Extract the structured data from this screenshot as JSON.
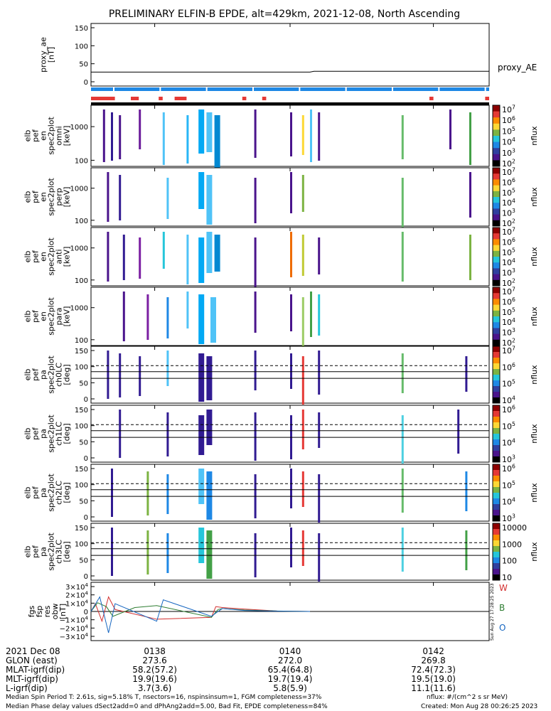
{
  "title": "PRELIMINARY ELFIN-B EPDE, alt=429km, 2021-12-08, North Ascending",
  "colors": {
    "mlt_bar": "#1e88e5",
    "flag_bar": "#e53935",
    "panel_frame": "#000000",
    "bx": "#d32f2f",
    "by": "#2e7d32",
    "bz": "#1565c0"
  },
  "chart_data": [
    {
      "type": "line",
      "panel": "proxy_ae",
      "ylabel_lines": [
        "proxy_ae",
        "[nT]"
      ],
      "yticks": [
        "150",
        "100",
        "50",
        "0"
      ],
      "ylim": [
        -10,
        160
      ],
      "legend": "proxy_AE",
      "series": [
        {
          "name": "proxy_AE",
          "x": [
            0,
            0.55,
            0.56,
            1.0
          ],
          "y": [
            28,
            28,
            30,
            30
          ]
        }
      ]
    },
    {
      "type": "heatmap",
      "panel": "omni",
      "ylabel_lines": [
        "elb",
        "pef",
        "en",
        "spec2plot",
        "omni",
        "[keV]"
      ],
      "yticks": [
        "1000",
        "100"
      ],
      "colorbar_ticks": [
        "10^7",
        "10^6",
        "10^5",
        "10^4",
        "10^3",
        "10^2"
      ],
      "colorbar_label": "nflux",
      "streaks": [
        {
          "t": 0.03,
          "c": "#4a148c"
        },
        {
          "t": 0.05,
          "c": "#311b92"
        },
        {
          "t": 0.07,
          "c": "#4a148c"
        },
        {
          "t": 0.12,
          "c": "#6a1b9a"
        },
        {
          "t": 0.18,
          "c": "#4fc3f7"
        },
        {
          "t": 0.24,
          "c": "#29b6f6"
        },
        {
          "t": 0.27,
          "c": "#03a9f4"
        },
        {
          "t": 0.29,
          "c": "#4fc3f7"
        },
        {
          "t": 0.31,
          "c": "#0288d1"
        },
        {
          "t": 0.41,
          "c": "#4a148c"
        },
        {
          "t": 0.5,
          "c": "#4a148c"
        },
        {
          "t": 0.53,
          "c": "#fdd835"
        },
        {
          "t": 0.55,
          "c": "#4fc3f7"
        },
        {
          "t": 0.57,
          "c": "#4a148c"
        },
        {
          "t": 0.78,
          "c": "#66bb6a"
        },
        {
          "t": 0.9,
          "c": "#4a148c"
        },
        {
          "t": 0.95,
          "c": "#43a047"
        }
      ]
    },
    {
      "type": "heatmap",
      "panel": "perp",
      "ylabel_lines": [
        "elb",
        "pef",
        "en",
        "spec2plot",
        "perp",
        "[keV]"
      ],
      "yticks": [
        "1000",
        "100"
      ],
      "colorbar_ticks": [
        "10^7",
        "10^6",
        "10^5",
        "10^4",
        "10^3",
        "10^2"
      ],
      "colorbar_label": "nflux",
      "streaks": [
        {
          "t": 0.04,
          "c": "#4a148c"
        },
        {
          "t": 0.07,
          "c": "#311b92"
        },
        {
          "t": 0.19,
          "c": "#4fc3f7"
        },
        {
          "t": 0.27,
          "c": "#03a9f4"
        },
        {
          "t": 0.29,
          "c": "#4fc3f7"
        },
        {
          "t": 0.41,
          "c": "#4a148c"
        },
        {
          "t": 0.5,
          "c": "#4a148c"
        },
        {
          "t": 0.53,
          "c": "#7cb342"
        },
        {
          "t": 0.78,
          "c": "#66bb6a"
        },
        {
          "t": 0.95,
          "c": "#4a148c"
        }
      ]
    },
    {
      "type": "heatmap",
      "panel": "anti",
      "ylabel_lines": [
        "elb",
        "pef",
        "en",
        "spec2plot",
        "anti",
        "[keV]"
      ],
      "yticks": [
        "1000",
        "100"
      ],
      "colorbar_ticks": [
        "10^7",
        "10^6",
        "10^5",
        "10^4",
        "10^3",
        "10^2"
      ],
      "colorbar_label": "nflux",
      "streaks": [
        {
          "t": 0.04,
          "c": "#4a148c"
        },
        {
          "t": 0.08,
          "c": "#311b92"
        },
        {
          "t": 0.12,
          "c": "#7b1fa2"
        },
        {
          "t": 0.18,
          "c": "#26c6da"
        },
        {
          "t": 0.24,
          "c": "#4fc3f7"
        },
        {
          "t": 0.27,
          "c": "#03a9f4"
        },
        {
          "t": 0.29,
          "c": "#4fc3f7"
        },
        {
          "t": 0.31,
          "c": "#0288d1"
        },
        {
          "t": 0.41,
          "c": "#4a148c"
        },
        {
          "t": 0.5,
          "c": "#ef6c00"
        },
        {
          "t": 0.53,
          "c": "#c0ca33"
        },
        {
          "t": 0.57,
          "c": "#4a148c"
        },
        {
          "t": 0.78,
          "c": "#66bb6a"
        },
        {
          "t": 0.95,
          "c": "#7cb342"
        }
      ]
    },
    {
      "type": "heatmap",
      "panel": "para",
      "ylabel_lines": [
        "elb",
        "pef",
        "en",
        "spec2plot",
        "para",
        "[keV]"
      ],
      "yticks": [
        "1000",
        "100"
      ],
      "colorbar_ticks": [
        "10^7",
        "10^6",
        "10^5",
        "10^4",
        "10^3",
        "10^2"
      ],
      "colorbar_label": "nflux",
      "streaks": [
        {
          "t": 0.08,
          "c": "#4a148c"
        },
        {
          "t": 0.14,
          "c": "#7b1fa2"
        },
        {
          "t": 0.19,
          "c": "#1e88e5"
        },
        {
          "t": 0.24,
          "c": "#4fc3f7"
        },
        {
          "t": 0.27,
          "c": "#03a9f4"
        },
        {
          "t": 0.3,
          "c": "#4fc3f7"
        },
        {
          "t": 0.41,
          "c": "#4a148c"
        },
        {
          "t": 0.5,
          "c": "#4a148c"
        },
        {
          "t": 0.53,
          "c": "#9ccc65"
        },
        {
          "t": 0.55,
          "c": "#43a047"
        },
        {
          "t": 0.57,
          "c": "#26c6da"
        }
      ]
    },
    {
      "type": "heatmap",
      "panel": "ch0LC",
      "ylabel_lines": [
        "elb",
        "pef",
        "pa",
        "spec2plot",
        "ch0LC",
        "[deg]"
      ],
      "yticks": [
        "150",
        "100",
        "50",
        "0"
      ],
      "colorbar_ticks": [
        "10^7",
        "10^6",
        "10^5",
        "10^4"
      ],
      "colorbar_label": "nflux",
      "streaks": [
        {
          "t": 0.04,
          "c": "#311b92"
        },
        {
          "t": 0.07,
          "c": "#311b92"
        },
        {
          "t": 0.12,
          "c": "#311b92"
        },
        {
          "t": 0.19,
          "c": "#4fc3f7"
        },
        {
          "t": 0.27,
          "c": "#311b92"
        },
        {
          "t": 0.29,
          "c": "#311b92"
        },
        {
          "t": 0.41,
          "c": "#311b92"
        },
        {
          "t": 0.5,
          "c": "#311b92"
        },
        {
          "t": 0.53,
          "c": "#e53935"
        },
        {
          "t": 0.57,
          "c": "#311b92"
        },
        {
          "t": 0.78,
          "c": "#66bb6a"
        },
        {
          "t": 0.94,
          "c": "#311b92"
        }
      ]
    },
    {
      "type": "heatmap",
      "panel": "ch1LC",
      "ylabel_lines": [
        "elb",
        "pef",
        "pa",
        "spec2plot",
        "ch1LC",
        "[deg]"
      ],
      "yticks": [
        "150",
        "100",
        "50",
        "0"
      ],
      "colorbar_ticks": [
        "10^6",
        "10^5",
        "10^4",
        "10^3"
      ],
      "colorbar_label": "nflux",
      "streaks": [
        {
          "t": 0.07,
          "c": "#311b92"
        },
        {
          "t": 0.19,
          "c": "#311b92"
        },
        {
          "t": 0.27,
          "c": "#311b92"
        },
        {
          "t": 0.29,
          "c": "#311b92"
        },
        {
          "t": 0.41,
          "c": "#311b92"
        },
        {
          "t": 0.5,
          "c": "#311b92"
        },
        {
          "t": 0.53,
          "c": "#e53935"
        },
        {
          "t": 0.57,
          "c": "#311b92"
        },
        {
          "t": 0.78,
          "c": "#4dd0e1"
        },
        {
          "t": 0.92,
          "c": "#311b92"
        }
      ]
    },
    {
      "type": "heatmap",
      "panel": "ch2LC",
      "ylabel_lines": [
        "elb",
        "pef",
        "pa",
        "spec2plot",
        "ch2LC",
        "[deg]"
      ],
      "yticks": [
        "150",
        "100",
        "50",
        "0"
      ],
      "colorbar_ticks": [
        "10^6",
        "10^5",
        "10^4",
        "10^3"
      ],
      "colorbar_label": "nflux",
      "streaks": [
        {
          "t": 0.05,
          "c": "#311b92"
        },
        {
          "t": 0.14,
          "c": "#7cb342"
        },
        {
          "t": 0.19,
          "c": "#1e88e5"
        },
        {
          "t": 0.27,
          "c": "#4fc3f7"
        },
        {
          "t": 0.29,
          "c": "#1e88e5"
        },
        {
          "t": 0.41,
          "c": "#311b92"
        },
        {
          "t": 0.5,
          "c": "#311b92"
        },
        {
          "t": 0.53,
          "c": "#e53935"
        },
        {
          "t": 0.57,
          "c": "#311b92"
        },
        {
          "t": 0.78,
          "c": "#66bb6a"
        },
        {
          "t": 0.94,
          "c": "#1e88e5"
        }
      ]
    },
    {
      "type": "heatmap",
      "panel": "ch3LC",
      "ylabel_lines": [
        "elb",
        "pef",
        "pa",
        "spec2plot",
        "ch3LC",
        "[deg]"
      ],
      "yticks": [
        "150",
        "100",
        "50",
        "0"
      ],
      "colorbar_ticks": [
        "10000",
        "1000",
        "100",
        "10"
      ],
      "colorbar_label": "nflux",
      "streaks": [
        {
          "t": 0.05,
          "c": "#311b92"
        },
        {
          "t": 0.14,
          "c": "#7cb342"
        },
        {
          "t": 0.19,
          "c": "#1e88e5"
        },
        {
          "t": 0.27,
          "c": "#26c6da"
        },
        {
          "t": 0.29,
          "c": "#43a047"
        },
        {
          "t": 0.41,
          "c": "#311b92"
        },
        {
          "t": 0.5,
          "c": "#311b92"
        },
        {
          "t": 0.53,
          "c": "#e53935"
        },
        {
          "t": 0.57,
          "c": "#311b92"
        },
        {
          "t": 0.78,
          "c": "#4dd0e1"
        },
        {
          "t": 0.94,
          "c": "#43a047"
        }
      ]
    },
    {
      "type": "line",
      "panel": "fgs",
      "ylabel_lines": [
        "fgs",
        "fsp",
        "res",
        "obw",
        "[nT]"
      ],
      "yticks": [
        "3×10^4",
        "2×10^4",
        "1×10^4",
        "0",
        "−1×10^4",
        "−2×10^4",
        "−3×10^4"
      ],
      "ylim": [
        -30000,
        30000
      ],
      "legend": [
        "W",
        "B",
        "O"
      ],
      "side_label": "Sun Aug 27 17:28:25 2023",
      "series": [
        {
          "name": "W",
          "x": [
            0,
            0.02,
            0.05,
            0.08,
            0.11,
            0.3,
            0.55,
            0.57,
            0.6,
            0.7,
            0.85,
            1.0
          ],
          "y": [
            0,
            8000,
            -10000,
            15000,
            2000,
            -8000,
            -6000,
            5000,
            4000,
            2500,
            500,
            0
          ]
        },
        {
          "name": "B",
          "x": [
            0,
            0.03,
            0.07,
            0.1,
            0.2,
            0.3,
            0.55,
            0.58,
            0.6,
            0.7,
            0.85,
            1.0
          ],
          "y": [
            0,
            9000,
            5000,
            -5000,
            4000,
            6000,
            -6000,
            2000,
            3000,
            1500,
            500,
            0
          ]
        },
        {
          "name": "O",
          "x": [
            0,
            0.04,
            0.08,
            0.11,
            0.3,
            0.33,
            0.55,
            0.58,
            0.6,
            0.7,
            0.85,
            1.0
          ],
          "y": [
            0,
            15000,
            -22000,
            8000,
            -10000,
            12000,
            -5000,
            0,
            3000,
            1000,
            400,
            0
          ]
        }
      ]
    }
  ],
  "ephemeris": {
    "rows": [
      {
        "label": "2021 Dec 08",
        "values": [
          "0138",
          "0140",
          "0142"
        ]
      },
      {
        "label": "GLON (east)",
        "values": [
          "273.6",
          "272.0",
          "269.8"
        ]
      },
      {
        "label": "MLAT-igrf(dip)",
        "values": [
          "58.2(57.2)",
          "65.4(64.8)",
          "72.4(72.3)"
        ]
      },
      {
        "label": "MLT-igrf(dip)",
        "values": [
          "19.9(19.6)",
          "19.7(19.4)",
          "19.5(19.0)"
        ]
      },
      {
        "label": "L-igrf(dip)",
        "values": [
          "3.7(3.6)",
          "5.8(5.9)",
          "11.1(11.6)"
        ]
      }
    ]
  },
  "footer": {
    "line1": "Median Spin Period T: 2.61s, sig=5.18% T, nsectors=16, nspinsinsum=1, FGM completeness=37%",
    "line2": "Median Phase delay values dSect2add=0 and dPhAng2add=5.00, Bad Fit, EPDE completeness=84%",
    "units": "nflux: #/(cm^2 s sr MeV)",
    "created": "Created: Mon Aug 28 00:26:25 2023"
  }
}
